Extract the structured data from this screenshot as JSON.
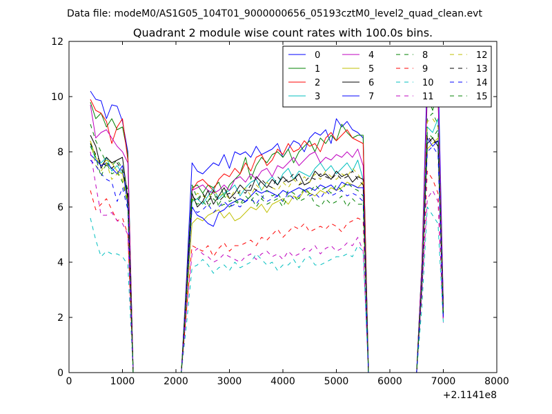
{
  "figure": {
    "suptitle": "Data file: modeM0/AS1G05_104T01_9000000656_05193cztM0_level2_quad_clean.evt"
  },
  "chart_data": {
    "type": "line",
    "title": "Quadrant 2 module wise count rates with 100.0s bins.",
    "xlabel": "",
    "ylabel": "",
    "xlim": [
      0,
      8000
    ],
    "ylim": [
      0,
      12
    ],
    "x_offset_label": "+2.1141e8",
    "x_ticks": [
      0,
      1000,
      2000,
      3000,
      4000,
      5000,
      6000,
      7000,
      8000
    ],
    "y_ticks": [
      0,
      2,
      4,
      6,
      8,
      10,
      12
    ],
    "grid": false,
    "legend_position": "top-right",
    "legend_columns": 4,
    "x": [
      400,
      500,
      600,
      700,
      800,
      900,
      1000,
      1100,
      1200,
      1300,
      2100,
      2200,
      2300,
      2400,
      2500,
      2600,
      2700,
      2800,
      2900,
      3000,
      3100,
      3200,
      3300,
      3400,
      3500,
      3600,
      3700,
      3800,
      3900,
      4000,
      4100,
      4200,
      4300,
      4400,
      4500,
      4600,
      4700,
      4800,
      4900,
      5000,
      5100,
      5200,
      5300,
      5400,
      5500,
      5600,
      6500,
      6600,
      6700,
      6800,
      6900,
      7000
    ],
    "series": [
      {
        "name": "0",
        "color": "#0000ff",
        "dash": "solid",
        "values": [
          10.2,
          9.9,
          9.85,
          9.2,
          9.7,
          9.65,
          9.1,
          8.0,
          0,
          0,
          0,
          3.5,
          7.6,
          7.3,
          7.2,
          7.4,
          7.6,
          7.5,
          7.9,
          7.4,
          8.0,
          7.9,
          8.0,
          7.8,
          8.2,
          7.9,
          8.0,
          8.1,
          8.3,
          7.8,
          8.1,
          8.4,
          8.3,
          8.0,
          8.5,
          8.7,
          8.6,
          8.8,
          8.3,
          9.2,
          8.9,
          9.1,
          8.8,
          8.7,
          8.5,
          0,
          0,
          4.0,
          11.0,
          10.9,
          11.1,
          2.5
        ]
      },
      {
        "name": "1",
        "color": "#008000",
        "dash": "solid",
        "values": [
          9.8,
          9.2,
          9.4,
          8.9,
          9.2,
          8.8,
          8.9,
          7.9,
          0,
          0,
          0,
          3.3,
          6.7,
          6.8,
          6.5,
          6.8,
          6.7,
          6.9,
          6.4,
          6.8,
          7.0,
          7.2,
          7.8,
          7.0,
          7.5,
          7.8,
          7.6,
          7.9,
          8.0,
          7.8,
          8.1,
          7.6,
          8.0,
          8.2,
          8.4,
          8.0,
          8.5,
          8.3,
          8.6,
          8.4,
          9.0,
          8.7,
          8.5,
          8.6,
          8.6,
          0,
          0,
          4.0,
          10.0,
          9.5,
          10.2,
          2.3
        ]
      },
      {
        "name": "2",
        "color": "#ff0000",
        "dash": "solid",
        "values": [
          9.9,
          9.5,
          9.4,
          9.1,
          8.3,
          8.9,
          9.2,
          7.7,
          0,
          0,
          0,
          3.1,
          6.6,
          6.9,
          7.0,
          6.8,
          6.6,
          7.0,
          7.2,
          7.1,
          7.4,
          7.2,
          7.6,
          7.3,
          7.8,
          7.9,
          7.5,
          7.7,
          8.1,
          7.9,
          8.3,
          8.0,
          8.1,
          8.4,
          8.2,
          8.3,
          8.0,
          8.5,
          8.7,
          8.4,
          8.6,
          8.8,
          8.5,
          8.4,
          8.3,
          0,
          0,
          3.9,
          10.3,
          10.1,
          10.0,
          2.4
        ]
      },
      {
        "name": "3",
        "color": "#00bfbf",
        "dash": "solid",
        "values": [
          8.3,
          7.7,
          7.6,
          7.8,
          7.3,
          7.5,
          7.2,
          6.4,
          0,
          0,
          0,
          3.0,
          6.2,
          6.3,
          6.1,
          6.4,
          6.7,
          6.3,
          6.5,
          6.6,
          6.8,
          6.4,
          6.7,
          6.9,
          7.0,
          6.6,
          6.9,
          7.1,
          6.8,
          7.2,
          7.4,
          7.0,
          7.3,
          7.2,
          7.1,
          7.4,
          7.6,
          7.3,
          7.5,
          7.2,
          7.4,
          7.6,
          7.3,
          7.7,
          7.0,
          0,
          0,
          3.8,
          8.9,
          8.7,
          9.2,
          2.2
        ]
      },
      {
        "name": "4",
        "color": "#bf00bf",
        "dash": "solid",
        "values": [
          9.7,
          8.5,
          8.7,
          8.8,
          8.5,
          8.2,
          8.0,
          7.6,
          0,
          0,
          0,
          3.2,
          6.6,
          6.7,
          6.8,
          6.6,
          6.5,
          6.6,
          6.8,
          6.6,
          7.0,
          7.1,
          6.9,
          7.2,
          7.0,
          7.3,
          7.4,
          7.1,
          7.5,
          7.4,
          7.6,
          7.8,
          7.5,
          7.7,
          7.9,
          8.0,
          7.6,
          7.8,
          7.7,
          7.9,
          7.8,
          8.0,
          7.8,
          8.1,
          7.5,
          0,
          0,
          3.9,
          10.3,
          9.9,
          10.1,
          2.4
        ]
      },
      {
        "name": "5",
        "color": "#bfbf00",
        "dash": "solid",
        "values": [
          8.4,
          7.8,
          7.5,
          7.7,
          7.6,
          7.3,
          7.2,
          6.3,
          0,
          0,
          0,
          2.6,
          5.4,
          5.6,
          5.5,
          5.7,
          5.8,
          5.9,
          5.6,
          5.8,
          5.5,
          5.6,
          5.8,
          6.0,
          5.9,
          6.1,
          5.8,
          6.1,
          6.2,
          6.3,
          6.1,
          6.4,
          6.3,
          6.6,
          6.5,
          6.4,
          6.6,
          6.5,
          6.7,
          6.6,
          6.7,
          6.9,
          6.8,
          6.7,
          6.9,
          0,
          0,
          3.3,
          8.1,
          8.3,
          8.5,
          2.0
        ]
      },
      {
        "name": "6",
        "color": "#000000",
        "dash": "solid",
        "values": [
          8.6,
          8.2,
          7.4,
          7.8,
          7.6,
          7.7,
          7.8,
          6.3,
          0,
          0,
          0,
          3.0,
          6.5,
          6.0,
          6.2,
          6.6,
          6.1,
          6.4,
          6.7,
          6.3,
          6.5,
          6.8,
          6.6,
          6.6,
          7.1,
          6.9,
          6.7,
          7.0,
          6.8,
          7.1,
          6.9,
          7.0,
          7.2,
          6.8,
          6.9,
          7.3,
          7.1,
          7.2,
          7.0,
          7.3,
          7.1,
          7.2,
          6.9,
          7.1,
          7.0,
          0,
          0,
          3.4,
          8.3,
          8.5,
          8.2,
          2.1
        ]
      },
      {
        "name": "7",
        "color": "#0000ff",
        "dash": "solid",
        "values": [
          7.9,
          7.7,
          7.5,
          7.6,
          7.4,
          7.2,
          7.5,
          6.0,
          0,
          0,
          0,
          2.9,
          6.0,
          5.7,
          5.6,
          5.4,
          5.3,
          5.8,
          5.9,
          6.1,
          6.2,
          6.3,
          6.2,
          6.4,
          6.6,
          6.5,
          6.6,
          6.5,
          6.4,
          6.6,
          6.5,
          6.6,
          6.7,
          6.6,
          6.7,
          6.6,
          6.8,
          6.7,
          6.8,
          6.6,
          6.9,
          6.8,
          6.8,
          6.7,
          6.7,
          0,
          0,
          3.3,
          8.5,
          8.2,
          8.4,
          2.0
        ]
      },
      {
        "name": "8",
        "color": "#008000",
        "dash": "dashed",
        "values": [
          9.0,
          8.4,
          8.0,
          7.6,
          7.5,
          7.7,
          7.4,
          6.6,
          0,
          0,
          0,
          2.9,
          6.8,
          6.3,
          6.5,
          6.2,
          6.6,
          6.0,
          6.1,
          6.0,
          6.2,
          6.1,
          6.2,
          6.4,
          6.0,
          6.3,
          6.1,
          6.2,
          6.3,
          6.0,
          6.4,
          6.4,
          6.2,
          6.3,
          6.5,
          6.1,
          6.0,
          6.3,
          6.1,
          6.2,
          6.4,
          6.0,
          6.3,
          6.1,
          6.1,
          0,
          0,
          3.4,
          9.2,
          9.4,
          9.0,
          2.2
        ]
      },
      {
        "name": "9",
        "color": "#ff0000",
        "dash": "dashed",
        "values": [
          6.6,
          5.9,
          6.1,
          6.3,
          5.9,
          5.5,
          5.6,
          5.0,
          0,
          0,
          0,
          2.3,
          4.6,
          4.5,
          4.4,
          4.6,
          4.2,
          4.5,
          4.7,
          4.4,
          4.6,
          4.6,
          4.7,
          4.8,
          4.6,
          4.9,
          4.8,
          5.0,
          5.2,
          4.9,
          5.1,
          5.3,
          5.2,
          5.4,
          5.1,
          5.2,
          5.3,
          5.2,
          5.4,
          5.3,
          5.1,
          5.4,
          5.5,
          5.6,
          5.5,
          0,
          0,
          2.9,
          7.3,
          7.0,
          6.5,
          1.9
        ]
      },
      {
        "name": "10",
        "color": "#00bfbf",
        "dash": "dashed",
        "values": [
          5.6,
          4.8,
          4.2,
          4.4,
          4.3,
          4.3,
          4.2,
          3.9,
          0,
          0,
          0,
          1.8,
          3.8,
          3.9,
          4.1,
          3.9,
          3.6,
          3.8,
          3.9,
          3.7,
          4.0,
          3.8,
          3.9,
          4.0,
          4.3,
          4.1,
          3.9,
          4.0,
          3.7,
          3.9,
          3.9,
          4.1,
          3.8,
          4.1,
          4.2,
          3.9,
          3.9,
          4.0,
          4.1,
          4.2,
          4.2,
          4.3,
          4.2,
          4.6,
          4.4,
          0,
          0,
          2.4,
          6.0,
          5.7,
          5.4,
          1.8
        ]
      },
      {
        "name": "11",
        "color": "#bf00bf",
        "dash": "dashed",
        "values": [
          8.0,
          6.8,
          5.7,
          5.7,
          5.8,
          5.5,
          5.4,
          5.0,
          0,
          0,
          0,
          2.3,
          4.3,
          4.5,
          4.3,
          4.2,
          4.0,
          4.1,
          4.3,
          4.2,
          4.1,
          4.0,
          4.2,
          4.3,
          4.1,
          4.3,
          4.4,
          4.2,
          4.3,
          4.1,
          4.4,
          4.2,
          4.3,
          4.5,
          4.4,
          4.6,
          4.3,
          4.5,
          4.6,
          4.4,
          4.5,
          4.7,
          4.6,
          4.9,
          4.4,
          0,
          0,
          3.0,
          6.3,
          6.6,
          6.2,
          1.8
        ]
      },
      {
        "name": "12",
        "color": "#bfbf00",
        "dash": "dashed",
        "values": [
          8.4,
          7.5,
          7.3,
          7.6,
          7.0,
          7.2,
          7.0,
          6.2,
          0,
          0,
          0,
          3.0,
          6.2,
          6.5,
          6.4,
          6.3,
          6.6,
          6.4,
          6.5,
          6.3,
          6.6,
          6.5,
          6.7,
          6.4,
          6.8,
          6.6,
          6.9,
          6.7,
          6.6,
          6.9,
          6.7,
          7.0,
          6.8,
          7.1,
          6.9,
          7.2,
          7.0,
          7.3,
          7.1,
          7.0,
          7.2,
          7.1,
          7.4,
          7.2,
          6.9,
          0,
          0,
          3.4,
          9.1,
          9.2,
          8.9,
          2.1
        ]
      },
      {
        "name": "13",
        "color": "#000000",
        "dash": "dashed",
        "values": [
          8.3,
          7.9,
          7.6,
          7.5,
          7.4,
          7.6,
          7.3,
          6.5,
          0,
          0,
          0,
          3.0,
          6.4,
          6.2,
          6.5,
          6.1,
          6.6,
          6.2,
          6.4,
          6.5,
          6.3,
          6.6,
          6.5,
          6.8,
          6.6,
          7.0,
          6.8,
          6.7,
          7.1,
          6.9,
          7.0,
          7.2,
          6.8,
          6.9,
          7.1,
          7.0,
          7.2,
          7.1,
          7.0,
          7.2,
          7.0,
          7.1,
          7.3,
          7.0,
          6.8,
          0,
          0,
          3.3,
          8.6,
          8.3,
          8.4,
          2.1
        ]
      },
      {
        "name": "14",
        "color": "#0000ff",
        "dash": "dashed",
        "values": [
          7.7,
          7.5,
          7.2,
          7.0,
          6.9,
          6.2,
          6.7,
          5.9,
          0,
          0,
          0,
          2.8,
          6.0,
          5.8,
          5.9,
          6.1,
          5.8,
          6.0,
          6.2,
          6.0,
          6.1,
          6.0,
          6.2,
          6.3,
          6.1,
          6.4,
          6.2,
          6.3,
          6.4,
          6.2,
          6.5,
          6.3,
          6.4,
          6.6,
          6.4,
          6.5,
          6.3,
          6.6,
          6.4,
          6.5,
          6.6,
          6.4,
          6.5,
          6.4,
          6.2,
          0,
          0,
          3.2,
          8.0,
          8.2,
          7.9,
          2.0
        ]
      },
      {
        "name": "15",
        "color": "#008000",
        "dash": "dashed",
        "values": [
          8.2,
          7.8,
          7.1,
          7.6,
          7.2,
          7.3,
          6.9,
          6.1,
          0,
          0,
          0,
          2.9,
          6.3,
          6.1,
          6.2,
          6.0,
          6.3,
          6.1,
          6.4,
          6.2,
          6.3,
          6.1,
          6.4,
          6.2,
          6.5,
          6.3,
          6.6,
          6.4,
          6.5,
          6.2,
          6.6,
          6.5,
          6.3,
          6.7,
          6.5,
          6.8,
          6.6,
          6.7,
          6.5,
          6.8,
          6.6,
          6.9,
          6.7,
          6.6,
          6.4,
          0,
          0,
          3.3,
          8.7,
          8.5,
          8.8,
          2.1
        ]
      }
    ]
  }
}
